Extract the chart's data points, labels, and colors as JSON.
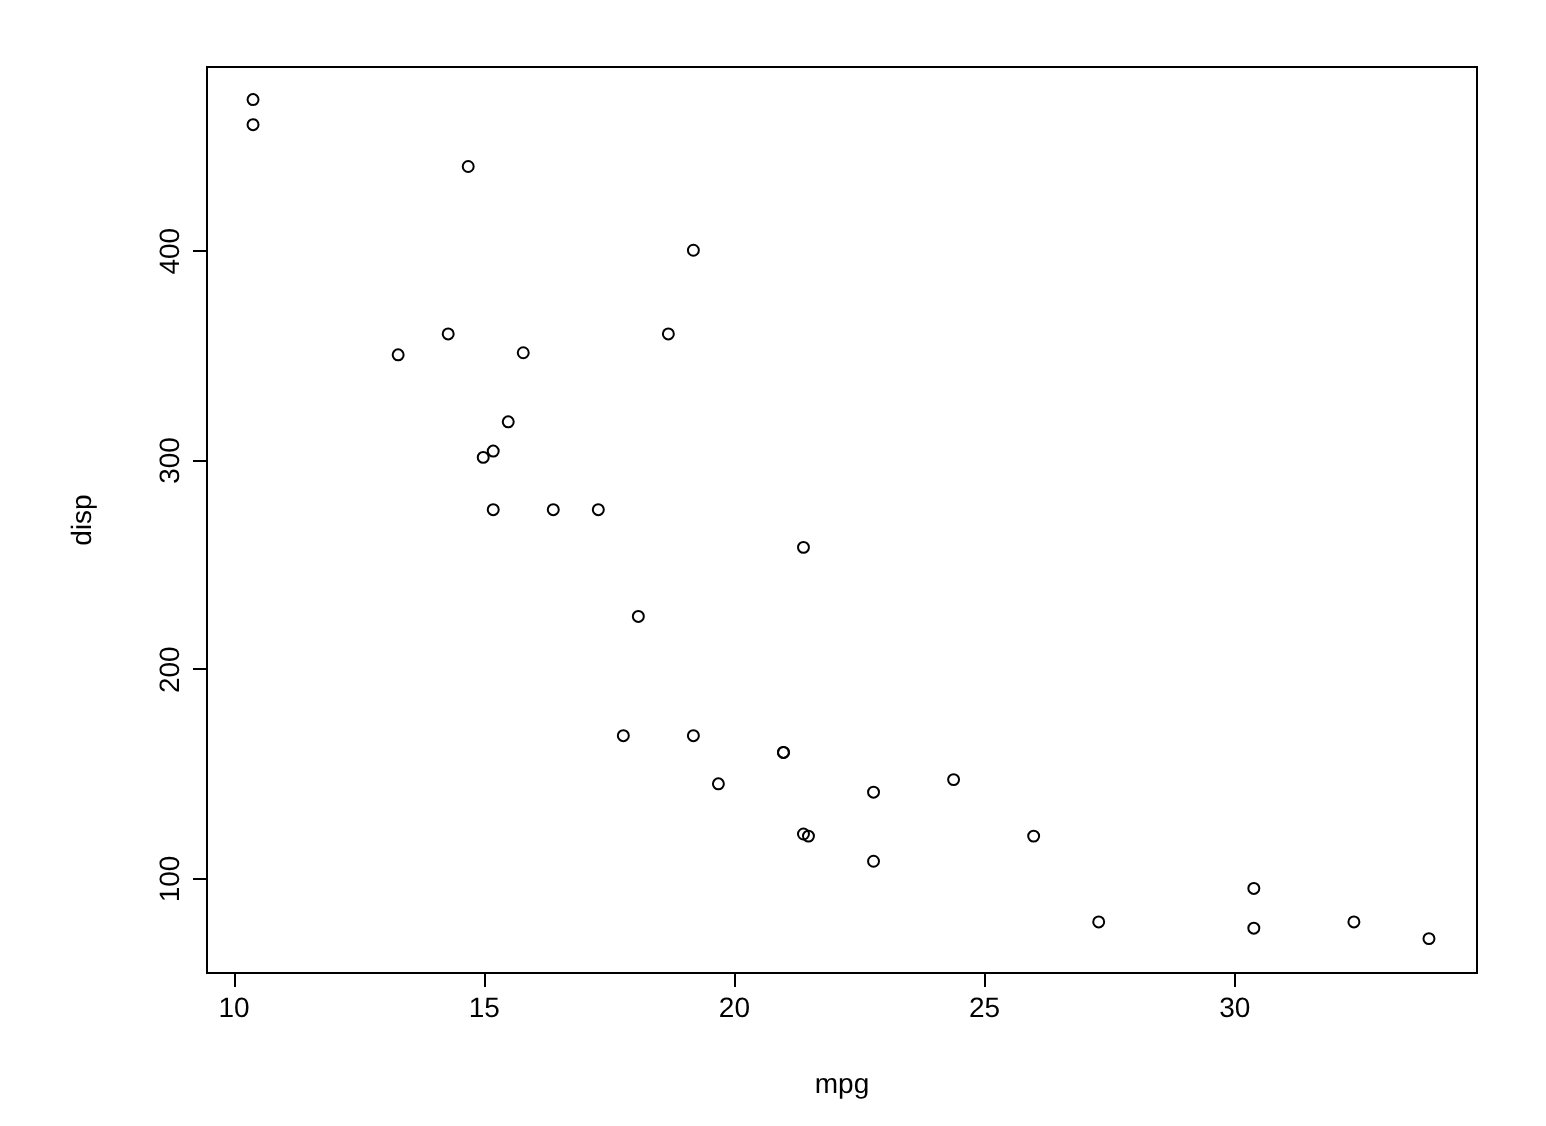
{
  "chart_data": {
    "type": "scatter",
    "xlabel": "mpg",
    "ylabel": "disp",
    "x": [
      21,
      21,
      22.8,
      21.4,
      18.7,
      18.1,
      14.3,
      24.4,
      22.8,
      19.2,
      17.8,
      16.4,
      17.3,
      15.2,
      10.4,
      10.4,
      14.7,
      32.4,
      30.4,
      33.9,
      21.5,
      15.5,
      15.2,
      13.3,
      19.2,
      27.3,
      26,
      30.4,
      15.8,
      19.7,
      15,
      21.4
    ],
    "values": [
      160,
      160,
      108,
      258,
      360,
      225,
      360,
      147,
      141,
      168,
      168,
      276,
      276,
      276,
      472,
      460,
      440,
      79,
      76,
      71,
      120,
      318,
      304,
      350,
      400,
      79,
      120,
      95,
      351,
      145,
      301,
      121
    ],
    "color": "#000000",
    "marker": "circle",
    "grid": false,
    "xlim": [
      9.46,
      34.84
    ],
    "ylim": [
      55.06,
      488.04
    ],
    "xticks": [
      10,
      15,
      20,
      25,
      30
    ],
    "yticks": [
      100,
      200,
      300,
      400
    ]
  }
}
